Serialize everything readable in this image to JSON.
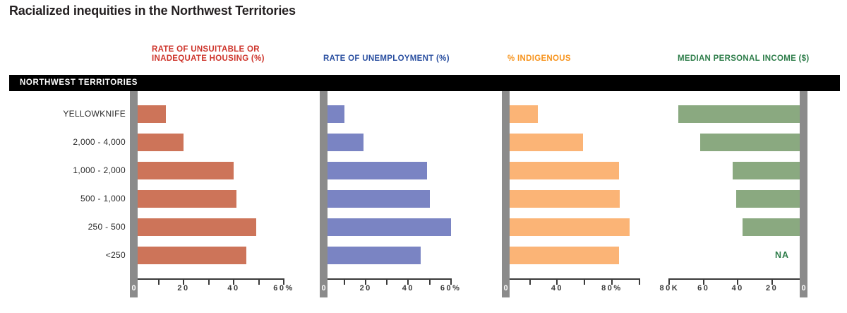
{
  "title": "Racialized inequities in the Northwest Territories",
  "region_band": {
    "label": "NORTHWEST TERRITORIES"
  },
  "na_label": "NA",
  "colors": {
    "title_text": "#231f20",
    "band_background": "#000000",
    "band_text": "#ffffff",
    "axis": "#3a3a3a",
    "zero_bar_gray": "#8b8b8b",
    "row_label_text": "#2b2b2b"
  },
  "chart_data": {
    "type": "bar",
    "orientation": "horizontal",
    "categories": [
      "YELLOWKNIFE",
      "2,000 - 4,000",
      "1,000 - 2,000",
      "500 - 1,000",
      "250 - 500",
      "<250"
    ],
    "panels": [
      {
        "name": "housing",
        "title": "RATE OF UNSUITABLE OR\nINADEQUATE HOUSING (%)",
        "title_color": "#ce352c",
        "bar_color": "#cd7459",
        "unit": "%",
        "direction": "ltr",
        "axis_range": [
          0,
          60
        ],
        "values": [
          13,
          20,
          40,
          41,
          49,
          45
        ],
        "zero_label": "0",
        "ticks": [
          {
            "value": 10,
            "label": ""
          },
          {
            "value": 20,
            "label": "20"
          },
          {
            "value": 30,
            "label": ""
          },
          {
            "value": 40,
            "label": "40"
          },
          {
            "value": 50,
            "label": ""
          },
          {
            "value": 60,
            "label": "60%"
          }
        ]
      },
      {
        "name": "unemployment",
        "title": "RATE OF UNEMPLOYMENT (%)",
        "title_color": "#2a4fa0",
        "bar_color": "#7a84c3",
        "unit": "%",
        "direction": "ltr",
        "axis_range": [
          0,
          60
        ],
        "values": [
          10,
          19,
          49,
          50,
          60,
          46
        ],
        "zero_label": "0",
        "ticks": [
          {
            "value": 10,
            "label": ""
          },
          {
            "value": 20,
            "label": "20"
          },
          {
            "value": 30,
            "label": ""
          },
          {
            "value": 40,
            "label": "40"
          },
          {
            "value": 50,
            "label": ""
          },
          {
            "value": 60,
            "label": "60%"
          }
        ]
      },
      {
        "name": "indigenous",
        "title": "% INDIGENOUS",
        "title_color": "#f7941e",
        "bar_color": "#fbb476",
        "unit": "%",
        "direction": "ltr",
        "axis_range": [
          0,
          100
        ],
        "values": [
          26,
          59,
          85,
          86,
          93,
          85
        ],
        "zero_label": "0",
        "ticks": [
          {
            "value": 20,
            "label": ""
          },
          {
            "value": 40,
            "label": "40"
          },
          {
            "value": 60,
            "label": ""
          },
          {
            "value": 80,
            "label": "80%"
          },
          {
            "value": 100,
            "label": ""
          }
        ]
      },
      {
        "name": "income",
        "title": "MEDIAN PERSONAL INCOME ($)",
        "title_color": "#2e7d4a",
        "bar_color": "#8aa980",
        "unit": "K$",
        "direction": "rtl",
        "axis_range": [
          0,
          80
        ],
        "values": [
          75,
          62,
          43,
          41,
          37,
          null
        ],
        "na_text": "NA",
        "zero_label": "0",
        "ticks": [
          {
            "value": 20,
            "label": "20"
          },
          {
            "value": 40,
            "label": "40"
          },
          {
            "value": 60,
            "label": "60"
          },
          {
            "value": 80,
            "label": "80K"
          }
        ]
      }
    ]
  }
}
